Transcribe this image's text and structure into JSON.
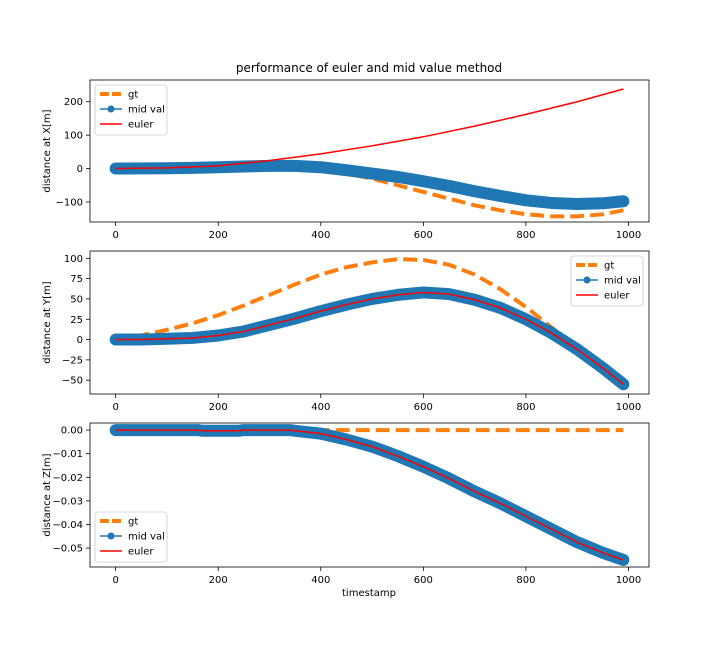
{
  "figure": {
    "title": "performance of euler and mid value method",
    "xlabel": "timestamp"
  },
  "colors": {
    "gt": "#ff7f0e",
    "mid_val": "#1f77b4",
    "euler": "#ff0000"
  },
  "chart_data": [
    {
      "type": "line",
      "title": "performance of euler and mid value method",
      "xlabel": "",
      "ylabel": "distance at X[m]",
      "xlim": [
        -50,
        1040
      ],
      "ylim": [
        -160,
        265
      ],
      "xticks": [
        0,
        200,
        400,
        600,
        800,
        1000
      ],
      "yticks": [
        -100,
        0,
        100,
        200
      ],
      "xtick_labels": [
        "0",
        "200",
        "400",
        "600",
        "800",
        "1000"
      ],
      "ytick_labels": [
        "−100",
        "0",
        "100",
        "200"
      ],
      "legend_position": "upper-left",
      "series": [
        {
          "name": "gt",
          "style": "dashed",
          "x": [
            0,
            100,
            200,
            250,
            300,
            350,
            400,
            450,
            500,
            550,
            600,
            650,
            700,
            750,
            800,
            850,
            900,
            950,
            990
          ],
          "y": [
            0,
            10,
            14,
            13,
            10,
            6,
            -2,
            -15,
            -30,
            -50,
            -70,
            -90,
            -110,
            -125,
            -137,
            -143,
            -143,
            -137,
            -125
          ]
        },
        {
          "name": "mid val",
          "style": "solid-marker",
          "x": [
            0,
            100,
            150,
            200,
            250,
            300,
            350,
            400,
            450,
            500,
            550,
            600,
            650,
            700,
            750,
            800,
            850,
            900,
            950,
            990
          ],
          "y": [
            0,
            1,
            2,
            4,
            6,
            8,
            8,
            4,
            -5,
            -15,
            -25,
            -38,
            -52,
            -68,
            -82,
            -95,
            -103,
            -106,
            -104,
            -98
          ]
        },
        {
          "name": "euler",
          "style": "solid",
          "x": [
            0,
            100,
            200,
            300,
            400,
            500,
            600,
            700,
            800,
            900,
            990
          ],
          "y": [
            0,
            2,
            8,
            24,
            44,
            68,
            95,
            127,
            162,
            200,
            238
          ]
        }
      ]
    },
    {
      "type": "line",
      "title": "",
      "xlabel": "",
      "ylabel": "distance at Y[m]",
      "xlim": [
        -50,
        1040
      ],
      "ylim": [
        -67,
        109
      ],
      "xticks": [
        0,
        200,
        400,
        600,
        800,
        1000
      ],
      "yticks": [
        -50,
        -25,
        0,
        25,
        50,
        75,
        100
      ],
      "xtick_labels": [
        "0",
        "200",
        "400",
        "600",
        "800",
        "1000"
      ],
      "ytick_labels": [
        "−50",
        "−25",
        "0",
        "25",
        "50",
        "75",
        "100"
      ],
      "legend_position": "upper-right",
      "series": [
        {
          "name": "gt",
          "style": "dashed",
          "x": [
            0,
            50,
            100,
            150,
            200,
            250,
            300,
            350,
            400,
            450,
            500,
            550,
            600,
            650,
            700,
            750,
            800,
            850,
            900
          ],
          "y": [
            0,
            5,
            12,
            20,
            30,
            42,
            55,
            68,
            80,
            89,
            95,
            99,
            98,
            92,
            80,
            62,
            40,
            15,
            -10
          ]
        },
        {
          "name": "mid val",
          "style": "solid-marker",
          "x": [
            0,
            50,
            100,
            150,
            200,
            250,
            300,
            350,
            400,
            450,
            500,
            550,
            600,
            650,
            700,
            750,
            800,
            850,
            900,
            950,
            990
          ],
          "y": [
            0,
            0,
            1,
            2,
            5,
            10,
            18,
            26,
            35,
            43,
            50,
            55,
            58,
            56,
            49,
            39,
            25,
            8,
            -12,
            -35,
            -55
          ]
        },
        {
          "name": "euler",
          "style": "solid",
          "x": [
            0,
            50,
            100,
            150,
            200,
            250,
            300,
            350,
            400,
            450,
            500,
            550,
            600,
            650,
            700,
            750,
            800,
            850,
            900,
            950,
            990
          ],
          "y": [
            0,
            0,
            1,
            2,
            5,
            10,
            18,
            26,
            35,
            43,
            50,
            55,
            58,
            56,
            49,
            39,
            25,
            8,
            -12,
            -35,
            -55
          ]
        }
      ]
    },
    {
      "type": "line",
      "title": "",
      "xlabel": "timestamp",
      "ylabel": "distance at Z[m]",
      "xlim": [
        -50,
        1040
      ],
      "ylim": [
        -0.058,
        0.003
      ],
      "xticks": [
        0,
        200,
        400,
        600,
        800,
        1000
      ],
      "yticks": [
        -0.05,
        -0.04,
        -0.03,
        -0.02,
        -0.01,
        0.0
      ],
      "xtick_labels": [
        "0",
        "200",
        "400",
        "600",
        "800",
        "1000"
      ],
      "ytick_labels": [
        "−0.05",
        "−0.04",
        "−0.03",
        "−0.02",
        "−0.01",
        "0.00"
      ],
      "legend_position": "lower-left",
      "series": [
        {
          "name": "gt",
          "style": "dashed",
          "x": [
            0,
            990
          ],
          "y": [
            0,
            0
          ]
        },
        {
          "name": "mid val",
          "style": "solid-marker",
          "x": [
            0,
            100,
            160,
            170,
            240,
            250,
            340,
            350,
            400,
            450,
            500,
            550,
            600,
            650,
            700,
            750,
            800,
            850,
            900,
            950,
            990
          ],
          "y": [
            0,
            0,
            0,
            -0.0003,
            -0.0003,
            0,
            0,
            -0.0003,
            -0.0015,
            -0.004,
            -0.007,
            -0.011,
            -0.0155,
            -0.0205,
            -0.026,
            -0.031,
            -0.0365,
            -0.042,
            -0.0475,
            -0.052,
            -0.055
          ]
        },
        {
          "name": "euler",
          "style": "solid",
          "x": [
            0,
            100,
            160,
            170,
            240,
            250,
            340,
            350,
            400,
            450,
            500,
            550,
            600,
            650,
            700,
            750,
            800,
            850,
            900,
            950,
            990
          ],
          "y": [
            0,
            0,
            0,
            -0.0003,
            -0.0003,
            0,
            0,
            -0.0003,
            -0.0015,
            -0.004,
            -0.007,
            -0.011,
            -0.0155,
            -0.0205,
            -0.026,
            -0.031,
            -0.0365,
            -0.042,
            -0.0475,
            -0.052,
            -0.055
          ]
        }
      ]
    }
  ]
}
